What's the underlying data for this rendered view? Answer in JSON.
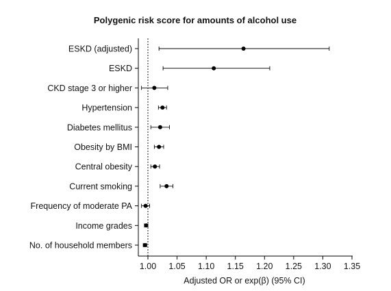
{
  "chart_data": {
    "type": "forest",
    "title": "Polygenic risk score for amounts of alcohol use",
    "xlabel": "Adjusted OR or exp(β) (95% CI)",
    "ylabel": "",
    "xlim": [
      0.985,
      1.35
    ],
    "xticks": [
      "1.00",
      "1.05",
      "1.10",
      "1.15",
      "1.20",
      "1.25",
      "1.30",
      "1.35"
    ],
    "reference_line": 1.0,
    "grid": false,
    "rows": [
      {
        "label": "ESKD (adjusted)",
        "estimate": 1.164,
        "lower": 1.019,
        "upper": 1.311
      },
      {
        "label": "ESKD",
        "estimate": 1.113,
        "lower": 1.026,
        "upper": 1.209
      },
      {
        "label": "CKD stage 3 or higher",
        "estimate": 1.011,
        "lower": 0.989,
        "upper": 1.034
      },
      {
        "label": "Hypertension",
        "estimate": 1.025,
        "lower": 1.018,
        "upper": 1.032
      },
      {
        "label": "Diabetes mellitus",
        "estimate": 1.021,
        "lower": 1.005,
        "upper": 1.037
      },
      {
        "label": "Obesity by BMI",
        "estimate": 1.019,
        "lower": 1.011,
        "upper": 1.027
      },
      {
        "label": "Central obesity",
        "estimate": 1.012,
        "lower": 1.005,
        "upper": 1.02
      },
      {
        "label": "Current smoking",
        "estimate": 1.032,
        "lower": 1.021,
        "upper": 1.043
      },
      {
        "label": "Frequency of moderate PA",
        "estimate": 0.996,
        "lower": 0.989,
        "upper": 1.003
      },
      {
        "label": "Income grades",
        "estimate": 0.997,
        "lower": 0.994,
        "upper": 1.0
      },
      {
        "label": "No. of household members",
        "estimate": 0.995,
        "lower": 0.992,
        "upper": 0.998
      }
    ]
  }
}
